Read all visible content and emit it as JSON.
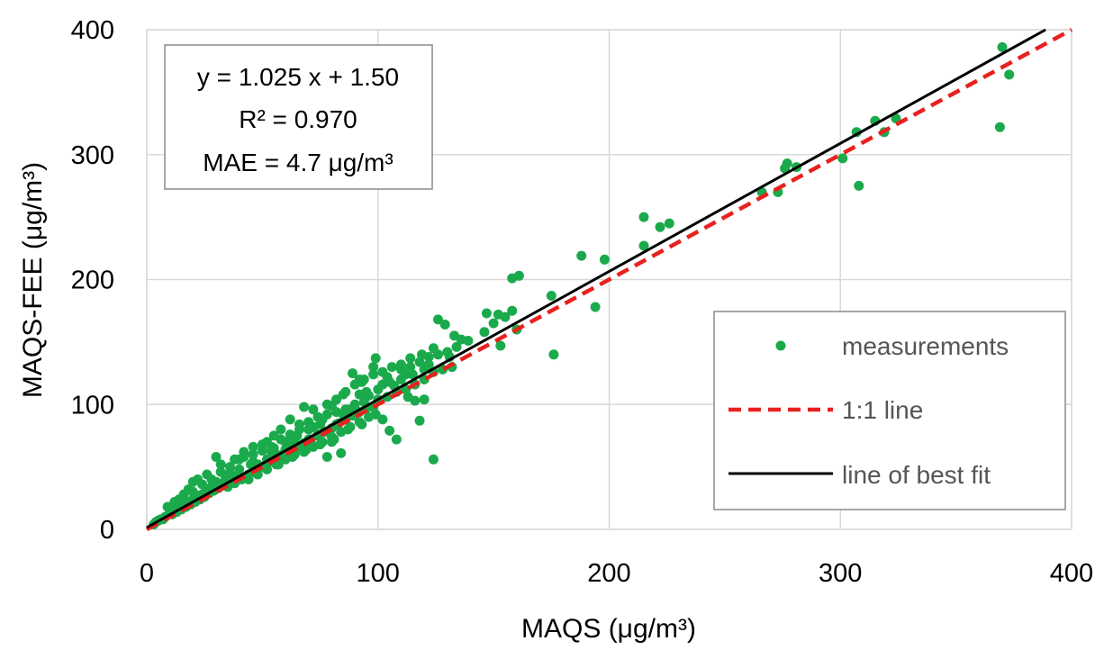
{
  "chart_data": {
    "type": "scatter",
    "xlabel": "MAQS (μg/m³)",
    "ylabel": "MAQS-FEE (μg/m³)",
    "xlim": [
      0,
      400
    ],
    "ylim": [
      0,
      400
    ],
    "xticks": [
      0,
      100,
      200,
      300,
      400
    ],
    "yticks": [
      0,
      100,
      200,
      300,
      400
    ],
    "grid": true,
    "legend_position": "bottom-right",
    "annotation": {
      "line1": "y = 1.025 x + 1.50",
      "line2": "R² = 0.970",
      "line3": "MAE = 4.7 μg/m³"
    },
    "series": [
      {
        "name": "measurements",
        "kind": "points",
        "color": "#1aaa4c",
        "points": [
          [
            370,
            386
          ],
          [
            373,
            364
          ],
          [
            369,
            322
          ],
          [
            308,
            275
          ],
          [
            301,
            297
          ],
          [
            307,
            318
          ],
          [
            315,
            327
          ],
          [
            319,
            318
          ],
          [
            324,
            329
          ],
          [
            277,
            293
          ],
          [
            276,
            289
          ],
          [
            281,
            290
          ],
          [
            273,
            270
          ],
          [
            266,
            270
          ],
          [
            215,
            250
          ],
          [
            215,
            227
          ],
          [
            222,
            242
          ],
          [
            226,
            245
          ],
          [
            188,
            219
          ],
          [
            198,
            216
          ],
          [
            194,
            178
          ],
          [
            175,
            187
          ],
          [
            176,
            140
          ],
          [
            158,
            201
          ],
          [
            161,
            203
          ],
          [
            158,
            175
          ],
          [
            155,
            170
          ],
          [
            160,
            160
          ],
          [
            150,
            165
          ],
          [
            147,
            173
          ],
          [
            152,
            172
          ],
          [
            146,
            158
          ],
          [
            153,
            147
          ],
          [
            126,
            168
          ],
          [
            129,
            164
          ],
          [
            133,
            155
          ],
          [
            136,
            152
          ],
          [
            139,
            151
          ],
          [
            124,
            145
          ],
          [
            131,
            138
          ],
          [
            119,
            140
          ],
          [
            114,
            137
          ],
          [
            110,
            128
          ],
          [
            104,
            122
          ],
          [
            98,
            130
          ],
          [
            99,
            137
          ],
          [
            107,
            115
          ],
          [
            113,
            106
          ],
          [
            116,
            103
          ],
          [
            120,
            104
          ],
          [
            118,
            87
          ],
          [
            124,
            56
          ],
          [
            105,
            79
          ],
          [
            108,
            72
          ],
          [
            102,
            88
          ],
          [
            96,
            107
          ],
          [
            92,
            120
          ],
          [
            89,
            125
          ],
          [
            93,
            118
          ],
          [
            85,
            108
          ],
          [
            86,
            96
          ],
          [
            80,
            99
          ],
          [
            78,
            92
          ],
          [
            82,
            84
          ],
          [
            76,
            88
          ],
          [
            72,
            96
          ],
          [
            68,
            98
          ],
          [
            74,
            76
          ],
          [
            80,
            70
          ],
          [
            84,
            61
          ],
          [
            78,
            58
          ],
          [
            70,
            72
          ],
          [
            66,
            84
          ],
          [
            62,
            88
          ],
          [
            58,
            80
          ],
          [
            55,
            75
          ],
          [
            52,
            70
          ],
          [
            50,
            63
          ],
          [
            46,
            66
          ],
          [
            42,
            62
          ],
          [
            40,
            48
          ],
          [
            44,
            44
          ],
          [
            48,
            52
          ],
          [
            52,
            56
          ],
          [
            56,
            60
          ],
          [
            60,
            64
          ],
          [
            64,
            70
          ],
          [
            68,
            66
          ],
          [
            36,
            45
          ],
          [
            34,
            40
          ],
          [
            30,
            38
          ],
          [
            28,
            34
          ],
          [
            26,
            32
          ],
          [
            24,
            28
          ],
          [
            22,
            27
          ],
          [
            20,
            24
          ],
          [
            18,
            22
          ],
          [
            16,
            20
          ],
          [
            14,
            18
          ],
          [
            12,
            16
          ],
          [
            10,
            14
          ],
          [
            8,
            10
          ],
          [
            6,
            8
          ],
          [
            4,
            6
          ],
          [
            3,
            4
          ],
          [
            9,
            18
          ],
          [
            12,
            22
          ],
          [
            16,
            28
          ],
          [
            20,
            30
          ],
          [
            24,
            36
          ],
          [
            28,
            40
          ],
          [
            32,
            46
          ],
          [
            36,
            50
          ],
          [
            30,
            58
          ],
          [
            22,
            40
          ],
          [
            18,
            32
          ],
          [
            14,
            24
          ],
          [
            38,
            56
          ],
          [
            42,
            58
          ],
          [
            46,
            60
          ],
          [
            50,
            68
          ],
          [
            54,
            66
          ],
          [
            58,
            72
          ],
          [
            62,
            76
          ],
          [
            66,
            80
          ],
          [
            70,
            86
          ],
          [
            74,
            90
          ],
          [
            78,
            100
          ],
          [
            82,
            104
          ],
          [
            86,
            110
          ],
          [
            90,
            116
          ],
          [
            94,
            120
          ],
          [
            98,
            124
          ],
          [
            102,
            126
          ],
          [
            106,
            130
          ],
          [
            110,
            132
          ],
          [
            114,
            130
          ],
          [
            118,
            134
          ],
          [
            122,
            138
          ],
          [
            126,
            140
          ],
          [
            130,
            142
          ],
          [
            134,
            146
          ],
          [
            90,
            100
          ],
          [
            94,
            102
          ],
          [
            98,
            98
          ],
          [
            100,
            104
          ],
          [
            104,
            106
          ],
          [
            108,
            110
          ],
          [
            112,
            112
          ],
          [
            116,
            116
          ],
          [
            120,
            120
          ],
          [
            124,
            126
          ],
          [
            128,
            128
          ],
          [
            132,
            130
          ],
          [
            44,
            40
          ],
          [
            48,
            44
          ],
          [
            52,
            48
          ],
          [
            56,
            52
          ],
          [
            60,
            56
          ],
          [
            64,
            60
          ],
          [
            68,
            62
          ],
          [
            72,
            66
          ],
          [
            76,
            70
          ],
          [
            80,
            74
          ],
          [
            84,
            78
          ],
          [
            88,
            82
          ],
          [
            92,
            86
          ],
          [
            96,
            90
          ],
          [
            35,
            34
          ],
          [
            38,
            37
          ],
          [
            41,
            40
          ],
          [
            44,
            43
          ],
          [
            47,
            46
          ],
          [
            50,
            50
          ],
          [
            53,
            54
          ],
          [
            56,
            57
          ],
          [
            59,
            60
          ],
          [
            62,
            63
          ],
          [
            65,
            66
          ],
          [
            68,
            69
          ],
          [
            71,
            72
          ],
          [
            74,
            75
          ],
          [
            77,
            78
          ],
          [
            80,
            81
          ],
          [
            83,
            85
          ],
          [
            86,
            88
          ],
          [
            89,
            91
          ],
          [
            92,
            94
          ],
          [
            95,
            97
          ],
          [
            25,
            26
          ],
          [
            27,
            29
          ],
          [
            29,
            31
          ],
          [
            31,
            33
          ],
          [
            33,
            35
          ],
          [
            23,
            24
          ],
          [
            21,
            22
          ],
          [
            19,
            20
          ],
          [
            17,
            18
          ],
          [
            15,
            16
          ],
          [
            13,
            14
          ],
          [
            11,
            12
          ],
          [
            7,
            8
          ],
          [
            5,
            7
          ],
          [
            40,
            56
          ],
          [
            45,
            52
          ],
          [
            55,
            65
          ],
          [
            60,
            70
          ],
          [
            65,
            75
          ],
          [
            70,
            80
          ],
          [
            75,
            84
          ],
          [
            85,
            92
          ],
          [
            88,
            96
          ],
          [
            95,
            110
          ],
          [
            100,
            112
          ],
          [
            105,
            118
          ],
          [
            110,
            120
          ],
          [
            115,
            124
          ],
          [
            120,
            128
          ],
          [
            20,
            38
          ],
          [
            26,
            44
          ],
          [
            32,
            52
          ],
          [
            38,
            42
          ],
          [
            46,
            54
          ],
          [
            54,
            62
          ],
          [
            62,
            68
          ],
          [
            72,
            82
          ],
          [
            82,
            94
          ],
          [
            92,
            108
          ],
          [
            102,
            116
          ],
          [
            112,
            124
          ],
          [
            122,
            132
          ],
          [
            57,
            52
          ],
          [
            63,
            58
          ],
          [
            69,
            64
          ],
          [
            75,
            68
          ],
          [
            81,
            72
          ],
          [
            87,
            80
          ],
          [
            93,
            84
          ],
          [
            99,
            92
          ]
        ]
      },
      {
        "name": "1:1 line",
        "kind": "line",
        "color": "#e8211f",
        "dash": true,
        "slope": 1,
        "intercept": 0
      },
      {
        "name": "line of best fit",
        "kind": "line",
        "color": "#000000",
        "dash": false,
        "slope": 1.025,
        "intercept": 1.5
      }
    ]
  }
}
